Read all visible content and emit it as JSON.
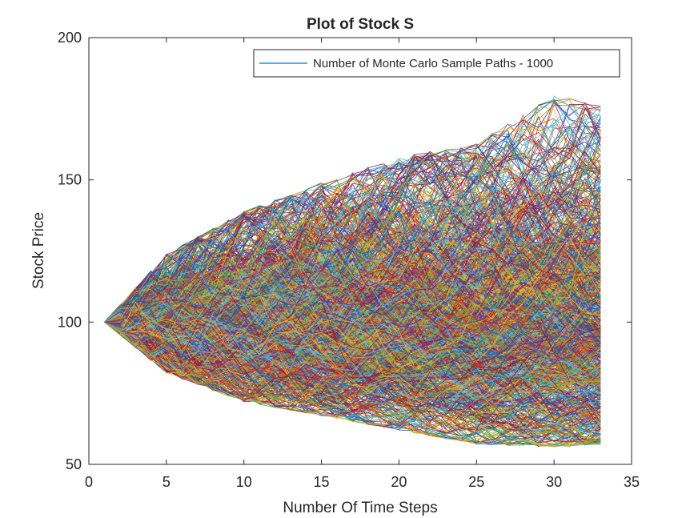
{
  "chart_data": {
    "type": "line",
    "title": "Plot of Stock S",
    "xlabel": "Number Of Time Steps",
    "ylabel": "Stock Price",
    "xlim": [
      0,
      35
    ],
    "ylim": [
      50,
      200
    ],
    "xticks": [
      0,
      5,
      10,
      15,
      20,
      25,
      30,
      35
    ],
    "yticks": [
      50,
      100,
      150,
      200
    ],
    "grid": false,
    "legend": {
      "placement": "top-right",
      "entries": [
        {
          "label": "Number of Monte Carlo Sample Paths - 1000",
          "color": "#0072BD"
        }
      ]
    },
    "simulation": {
      "start_price": 100,
      "num_steps": 33,
      "num_paths": 1000
    },
    "envelope": {
      "x": [
        1,
        5,
        10,
        15,
        20,
        25,
        30,
        33
      ],
      "upper": [
        100,
        124,
        139,
        149,
        158,
        163,
        180,
        176
      ],
      "lower": [
        100,
        82,
        72,
        67,
        62,
        57,
        56,
        57
      ]
    },
    "colors": [
      "#0072BD",
      "#D95319",
      "#EDB120",
      "#7E2F8E",
      "#77AC30",
      "#4DBEEE",
      "#A2142F"
    ]
  }
}
